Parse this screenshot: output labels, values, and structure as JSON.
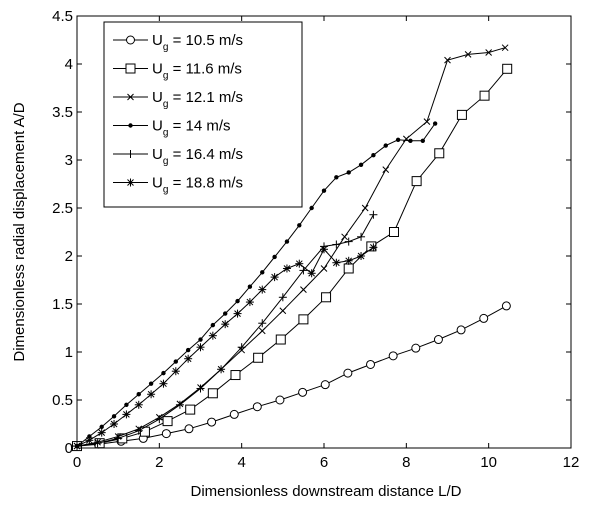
{
  "chart_data": {
    "type": "line",
    "xlabel": "Dimensionless downstream distance L/D",
    "ylabel": "Dimensionless radial displacement A/D",
    "xlim": [
      0,
      12
    ],
    "ylim": [
      0,
      4.5
    ],
    "xticks": [
      0,
      2,
      4,
      6,
      8,
      10,
      12
    ],
    "xtick_labels": [
      "0",
      "2",
      "4",
      "6",
      "8",
      "10",
      "12"
    ],
    "yticks": [
      0,
      0.5,
      1,
      1.5,
      2,
      2.5,
      3,
      3.5,
      4,
      4.5
    ],
    "ytick_labels": [
      "0",
      "0.5",
      "1",
      "1.5",
      "2",
      "2.5",
      "3",
      "3.5",
      "4",
      "4.5"
    ],
    "grid": false,
    "legend_position": "top-left",
    "series": [
      {
        "name": "U_g = 10.5 m/s",
        "legend_main": "U",
        "legend_sub": "g",
        "legend_rest": " = 10.5 m/s",
        "marker": "circle",
        "x": [
          0,
          0.52,
          1.07,
          1.61,
          2.17,
          2.72,
          3.27,
          3.82,
          4.38,
          4.93,
          5.48,
          6.03,
          6.58,
          7.13,
          7.68,
          8.23,
          8.78,
          9.33,
          9.88,
          10.43
        ],
        "y": [
          0.02,
          0.04,
          0.07,
          0.1,
          0.15,
          0.2,
          0.27,
          0.35,
          0.43,
          0.5,
          0.58,
          0.66,
          0.78,
          0.87,
          0.96,
          1.04,
          1.13,
          1.23,
          1.35,
          1.48
        ]
      },
      {
        "name": "U_g = 11.6 m/s",
        "legend_main": "U",
        "legend_sub": "g",
        "legend_rest": " = 11.6 m/s",
        "marker": "square",
        "x": [
          0,
          0.55,
          1.1,
          1.65,
          2.2,
          2.75,
          3.3,
          3.85,
          4.4,
          4.95,
          5.5,
          6.05,
          6.6,
          7.15,
          7.7,
          8.25,
          8.8,
          9.35,
          9.9,
          10.45
        ],
        "y": [
          0.02,
          0.05,
          0.1,
          0.17,
          0.28,
          0.4,
          0.57,
          0.76,
          0.94,
          1.13,
          1.34,
          1.57,
          1.87,
          2.1,
          2.25,
          2.78,
          3.07,
          3.47,
          3.67,
          3.95
        ]
      },
      {
        "name": "U_g = 12.1 m/s",
        "legend_main": "U",
        "legend_sub": "g",
        "legend_rest": " = 12.1 m/s",
        "marker": "x",
        "x": [
          0,
          0.5,
          1.0,
          1.5,
          2.0,
          2.5,
          3.0,
          3.5,
          4.0,
          4.5,
          5.0,
          5.5,
          6.0,
          6.5,
          7.0,
          7.5,
          8.0,
          8.5,
          9.0,
          9.5,
          10.0,
          10.4
        ],
        "y": [
          0.02,
          0.06,
          0.12,
          0.2,
          0.32,
          0.46,
          0.63,
          0.82,
          1.02,
          1.22,
          1.43,
          1.65,
          1.87,
          2.2,
          2.5,
          2.9,
          3.22,
          3.4,
          4.04,
          4.1,
          4.12,
          4.17
        ]
      },
      {
        "name": "U_g = 14 m/s",
        "legend_main": "U",
        "legend_sub": "g",
        "legend_rest": " = 14 m/s",
        "marker": "dot",
        "x": [
          0,
          0.3,
          0.6,
          0.9,
          1.2,
          1.5,
          1.8,
          2.1,
          2.4,
          2.7,
          3.0,
          3.3,
          3.6,
          3.9,
          4.2,
          4.5,
          4.8,
          5.1,
          5.4,
          5.7,
          6.0,
          6.3,
          6.6,
          6.9,
          7.2,
          7.5,
          7.8,
          8.1,
          8.4,
          8.7
        ],
        "y": [
          0.02,
          0.12,
          0.22,
          0.33,
          0.45,
          0.56,
          0.67,
          0.78,
          0.9,
          1.02,
          1.13,
          1.28,
          1.4,
          1.53,
          1.68,
          1.83,
          1.99,
          2.15,
          2.32,
          2.5,
          2.68,
          2.82,
          2.87,
          2.95,
          3.05,
          3.15,
          3.21,
          3.2,
          3.2,
          3.38
        ]
      },
      {
        "name": "U_g = 16.4 m/s",
        "legend_main": "U",
        "legend_sub": "g",
        "legend_rest": " = 16.4 m/s",
        "marker": "plus",
        "x": [
          0,
          0.5,
          1.0,
          1.5,
          2.0,
          2.5,
          3.0,
          3.5,
          4.0,
          4.5,
          5.0,
          5.5,
          6.0,
          6.3,
          6.6,
          6.9,
          7.2
        ],
        "y": [
          0.02,
          0.05,
          0.1,
          0.18,
          0.3,
          0.45,
          0.62,
          0.82,
          1.05,
          1.3,
          1.57,
          1.85,
          2.1,
          2.12,
          2.15,
          2.2,
          2.43
        ]
      },
      {
        "name": "U_g = 18.8 m/s",
        "legend_main": "U",
        "legend_sub": "g",
        "legend_rest": " = 18.8 m/s",
        "marker": "star",
        "x": [
          0,
          0.3,
          0.6,
          0.9,
          1.2,
          1.5,
          1.8,
          2.1,
          2.4,
          2.7,
          3.0,
          3.3,
          3.6,
          3.9,
          4.2,
          4.5,
          4.8,
          5.1,
          5.4,
          5.7,
          6.0,
          6.3,
          6.6,
          6.9,
          7.2
        ],
        "y": [
          0.02,
          0.08,
          0.16,
          0.25,
          0.35,
          0.45,
          0.56,
          0.67,
          0.8,
          0.93,
          1.05,
          1.17,
          1.29,
          1.4,
          1.52,
          1.65,
          1.78,
          1.87,
          1.92,
          1.82,
          2.07,
          1.93,
          1.95,
          2.0,
          2.09
        ]
      }
    ]
  }
}
